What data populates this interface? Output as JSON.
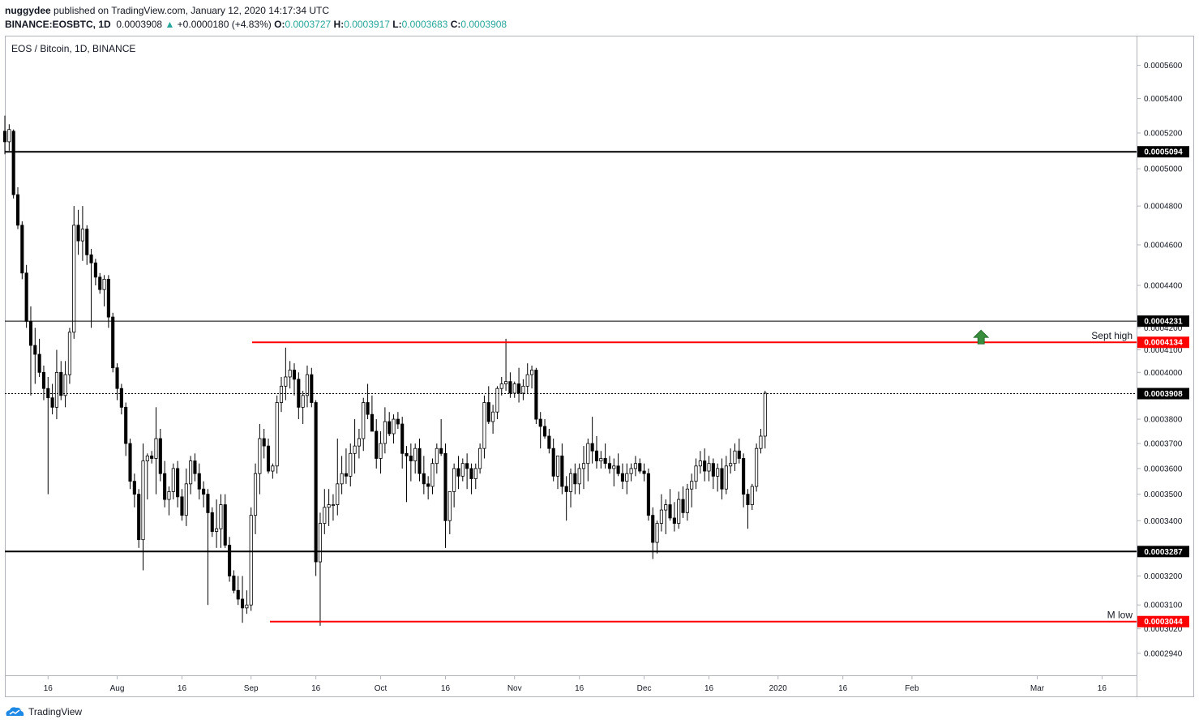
{
  "header": {
    "publisher": "nuggydee",
    "published_text": "published on TradingView.com, January 12, 2020 14:17:34 UTC",
    "symbol": "BINANCE:EOSBTC, 1D",
    "last": "0.0003908",
    "arrow": "▲",
    "change": "+0.0000180 (+4.83%)",
    "o_label": "O:",
    "o_value": "0.0003727",
    "h_label": "H:",
    "h_value": "0.0003917",
    "l_label": "L:",
    "l_value": "0.0003683",
    "c_label": "C:",
    "c_value": "0.0003908"
  },
  "footer": {
    "brand": "TradingView"
  },
  "chart_data": {
    "type": "candlestick",
    "title": "EOS / Bitcoin, 1D, BINANCE",
    "scale": "log",
    "ylim": [
      0.000287,
      0.000578
    ],
    "y_ticks": [
      "0.0005600",
      "0.0005400",
      "0.0005200",
      "0.0005000",
      "0.0004800",
      "0.0004600",
      "0.0004400",
      "0.0004200",
      "0.0004100",
      "0.0004000",
      "0.0003800",
      "0.0003700",
      "0.0003600",
      "0.0003500",
      "0.0003400",
      "0.0003200",
      "0.0003100",
      "0.0003020",
      "0.0002940"
    ],
    "x_ticks": [
      "16",
      "Aug",
      "16",
      "Sep",
      "16",
      "Oct",
      "16",
      "Nov",
      "16",
      "Dec",
      "16",
      "2020",
      "16",
      "Feb",
      "Mar",
      "16"
    ],
    "x_tick_dates": [
      "2019-07-16",
      "2019-08-01",
      "2019-08-16",
      "2019-09-01",
      "2019-09-16",
      "2019-10-01",
      "2019-10-16",
      "2019-11-01",
      "2019-11-16",
      "2019-12-01",
      "2019-12-16",
      "2020-01-01",
      "2020-01-16",
      "2020-02-01",
      "2020-03-01",
      "2020-03-16"
    ],
    "x_range": [
      "2019-07-06",
      "2020-03-24"
    ],
    "hlines": [
      {
        "value": 0.0005094,
        "label": "0.0005094",
        "color": "#000000",
        "note": ""
      },
      {
        "value": 0.0004231,
        "label": "0.0004231",
        "color": "#000000",
        "note": ""
      },
      {
        "value": 0.0004134,
        "label": "0.0004134",
        "color": "#ff0000",
        "note": "Sept high"
      },
      {
        "value": 0.0003908,
        "label": "0.0003908",
        "color": "#000000",
        "note": ""
      },
      {
        "value": 0.0003287,
        "label": "0.0003287",
        "color": "#000000",
        "note": ""
      },
      {
        "value": 0.0003044,
        "label": "0.0003044",
        "color": "#ff0000",
        "note": "M low"
      }
    ],
    "annotation": {
      "type": "arrow-up",
      "color": "#388e3c",
      "date": "2020-02-17",
      "value": 0.0004134
    },
    "candles_start": "2019-07-06",
    "candles": [
      [
        0.000521,
        0.00053,
        0.000508,
        0.000515
      ],
      [
        0.000515,
        0.000525,
        0.00051,
        0.000522
      ],
      [
        0.000521,
        0.000522,
        0.000484,
        0.000486
      ],
      [
        0.000486,
        0.00049,
        0.000468,
        0.00047
      ],
      [
        0.00047,
        0.000472,
        0.000443,
        0.000446
      ],
      [
        0.000446,
        0.00045,
        0.00042,
        0.000423
      ],
      [
        0.000423,
        0.00043,
        0.00039,
        0.000412
      ],
      [
        0.000412,
        0.00042,
        0.000395,
        0.000408
      ],
      [
        0.000408,
        0.000415,
        0.000398,
        0.0004
      ],
      [
        0.0004,
        0.000403,
        0.000388,
        0.000393
      ],
      [
        0.000393,
        0.000398,
        0.00035,
        0.000389
      ],
      [
        0.000389,
        0.000395,
        0.000382,
        0.000385
      ],
      [
        0.000385,
        0.00041,
        0.00038,
        0.0004
      ],
      [
        0.0004,
        0.000405,
        0.000388,
        0.00039
      ],
      [
        0.00039,
        0.000405,
        0.000385,
        0.000399
      ],
      [
        0.000399,
        0.00042,
        0.000395,
        0.000418
      ],
      [
        0.000418,
        0.00048,
        0.000415,
        0.00047
      ],
      [
        0.00047,
        0.000478,
        0.000455,
        0.000462
      ],
      [
        0.000462,
        0.00048,
        0.000452,
        0.000468
      ],
      [
        0.000468,
        0.00047,
        0.00045,
        0.000455
      ],
      [
        0.000455,
        0.000458,
        0.00042,
        0.000451
      ],
      [
        0.000451,
        0.000453,
        0.00044,
        0.000444
      ],
      [
        0.000444,
        0.000446,
        0.000436,
        0.000438
      ],
      [
        0.000438,
        0.000445,
        0.00043,
        0.000443
      ],
      [
        0.000443,
        0.000445,
        0.00042,
        0.000425
      ],
      [
        0.000425,
        0.000427,
        0.0004,
        0.000402
      ],
      [
        0.000402,
        0.000404,
        0.000388,
        0.000393
      ],
      [
        0.000393,
        0.000395,
        0.000382,
        0.000385
      ],
      [
        0.000385,
        0.000387,
        0.000365,
        0.00037
      ],
      [
        0.00037,
        0.000372,
        0.000352,
        0.000355
      ],
      [
        0.000355,
        0.000358,
        0.000345,
        0.00035
      ],
      [
        0.00035,
        0.000352,
        0.00033,
        0.000333
      ],
      [
        0.000333,
        0.00037,
        0.000322,
        0.000363
      ],
      [
        0.000363,
        0.000366,
        0.000348,
        0.000365
      ],
      [
        0.000365,
        0.000367,
        0.000362,
        0.000364
      ],
      [
        0.000364,
        0.000385,
        0.00035,
        0.000372
      ],
      [
        0.000372,
        0.000376,
        0.000355,
        0.000358
      ],
      [
        0.000358,
        0.000363,
        0.000345,
        0.000348
      ],
      [
        0.000348,
        0.000353,
        0.000342,
        0.000351
      ],
      [
        0.000351,
        0.000362,
        0.000348,
        0.00036
      ],
      [
        0.00036,
        0.000363,
        0.000345,
        0.000349
      ],
      [
        0.000349,
        0.000352,
        0.00034,
        0.000342
      ],
      [
        0.000342,
        0.00036,
        0.000338,
        0.000354
      ],
      [
        0.000354,
        0.000365,
        0.00035,
        0.000363
      ],
      [
        0.000363,
        0.000366,
        0.000355,
        0.000358
      ],
      [
        0.000358,
        0.000362,
        0.000348,
        0.000352
      ],
      [
        0.000352,
        0.000355,
        0.000345,
        0.00035
      ],
      [
        0.00035,
        0.000352,
        0.00031,
        0.000343
      ],
      [
        0.000343,
        0.000345,
        0.000334,
        0.000336
      ],
      [
        0.000336,
        0.000348,
        0.00033,
        0.000337
      ],
      [
        0.000337,
        0.00035,
        0.00033,
        0.000346
      ],
      [
        0.000346,
        0.00035,
        0.00033,
        0.000331
      ],
      [
        0.000331,
        0.000334,
        0.000318,
        0.00032
      ],
      [
        0.00032,
        0.000322,
        0.000314,
        0.000315
      ],
      [
        0.000315,
        0.00032,
        0.00031,
        0.000312
      ],
      [
        0.000312,
        0.00032,
        0.000304,
        0.000309
      ],
      [
        0.000309,
        0.000315,
        0.000307,
        0.00031
      ],
      [
        0.00031,
        0.000345,
        0.000308,
        0.000342
      ],
      [
        0.000342,
        0.000362,
        0.000335,
        0.000358
      ],
      [
        0.000358,
        0.000378,
        0.00035,
        0.000372
      ],
      [
        0.000372,
        0.000376,
        0.000364,
        0.000369
      ],
      [
        0.000369,
        0.000372,
        0.000358,
        0.000359
      ],
      [
        0.000359,
        0.000362,
        0.000356,
        0.000361
      ],
      [
        0.000361,
        0.00039,
        0.000358,
        0.000387
      ],
      [
        0.000387,
        0.000398,
        0.000383,
        0.000394
      ],
      [
        0.000394,
        0.000411,
        0.000388,
        0.000398
      ],
      [
        0.000398,
        0.000405,
        0.000393,
        0.000401
      ],
      [
        0.000401,
        0.000404,
        0.00039,
        0.000397
      ],
      [
        0.000397,
        0.0004,
        0.00038,
        0.000385
      ],
      [
        0.000385,
        0.000392,
        0.000378,
        0.00039
      ],
      [
        0.00039,
        0.000403,
        0.000385,
        0.000399
      ],
      [
        0.000399,
        0.000402,
        0.000385,
        0.000387
      ],
      [
        0.000387,
        0.000388,
        0.00032,
        0.000325
      ],
      [
        0.000325,
        0.000343,
        0.000303,
        0.000339
      ],
      [
        0.000339,
        0.000352,
        0.000335,
        0.000345
      ],
      [
        0.000345,
        0.000352,
        0.000338,
        0.000346
      ],
      [
        0.000346,
        0.00035,
        0.00034,
        0.000346
      ],
      [
        0.000346,
        0.000372,
        0.000342,
        0.000354
      ],
      [
        0.000354,
        0.000365,
        0.00035,
        0.000358
      ],
      [
        0.000358,
        0.000368,
        0.000354,
        0.000357
      ],
      [
        0.000357,
        0.00037,
        0.000353,
        0.000366
      ],
      [
        0.000366,
        0.00038,
        0.000358,
        0.000369
      ],
      [
        0.000369,
        0.000376,
        0.000364,
        0.000372
      ],
      [
        0.000372,
        0.000389,
        0.000367,
        0.000387
      ],
      [
        0.000387,
        0.000395,
        0.00038,
        0.000382
      ],
      [
        0.000382,
        0.00039,
        0.000375,
        0.000375
      ],
      [
        0.000375,
        0.00038,
        0.00036,
        0.000364
      ],
      [
        0.000364,
        0.000375,
        0.000358,
        0.00037
      ],
      [
        0.00037,
        0.000385,
        0.000366,
        0.000379
      ],
      [
        0.000379,
        0.000383,
        0.000373,
        0.000374
      ],
      [
        0.000374,
        0.000382,
        0.00037,
        0.00038
      ],
      [
        0.00038,
        0.000383,
        0.000376,
        0.000378
      ],
      [
        0.000378,
        0.000381,
        0.00036,
        0.000366
      ],
      [
        0.000366,
        0.000369,
        0.000347,
        0.000365
      ],
      [
        0.000365,
        0.00037,
        0.000355,
        0.000363
      ],
      [
        0.000363,
        0.00037,
        0.000358,
        0.000368
      ],
      [
        0.000368,
        0.000372,
        0.000355,
        0.000358
      ],
      [
        0.000358,
        0.000365,
        0.00035,
        0.000354
      ],
      [
        0.000354,
        0.000357,
        0.000348,
        0.000353
      ],
      [
        0.000353,
        0.000364,
        0.00035,
        0.000362
      ],
      [
        0.000362,
        0.00037,
        0.000358,
        0.000368
      ],
      [
        0.000368,
        0.00038,
        0.000365,
        0.000366
      ],
      [
        0.000366,
        0.00037,
        0.00033,
        0.00034
      ],
      [
        0.00034,
        0.00035,
        0.000335,
        0.000351
      ],
      [
        0.000351,
        0.000362,
        0.000345,
        0.00036
      ],
      [
        0.00036,
        0.000365,
        0.000352,
        0.000357
      ],
      [
        0.000357,
        0.000364,
        0.000355,
        0.000362
      ],
      [
        0.000362,
        0.000366,
        0.000352,
        0.00036
      ],
      [
        0.00036,
        0.000362,
        0.00035,
        0.000356
      ],
      [
        0.000356,
        0.000362,
        0.000352,
        0.00036
      ],
      [
        0.00036,
        0.00037,
        0.000358,
        0.000368
      ],
      [
        0.000368,
        0.00039,
        0.000364,
        0.000387
      ],
      [
        0.000387,
        0.000394,
        0.000378,
        0.000379
      ],
      [
        0.000379,
        0.000386,
        0.000374,
        0.000383
      ],
      [
        0.000383,
        0.000394,
        0.00038,
        0.000393
      ],
      [
        0.000393,
        0.000398,
        0.00039,
        0.000395
      ],
      [
        0.000395,
        0.000415,
        0.000392,
        0.000396
      ],
      [
        0.000396,
        0.0004,
        0.000389,
        0.000391
      ],
      [
        0.000391,
        0.000396,
        0.000389,
        0.000395
      ],
      [
        0.000395,
        0.000402,
        0.000387,
        0.000391
      ],
      [
        0.000391,
        0.000397,
        0.000388,
        0.000394
      ],
      [
        0.000394,
        0.000404,
        0.000391,
        0.000399
      ],
      [
        0.000399,
        0.000403,
        0.000393,
        0.000401
      ],
      [
        0.000401,
        0.000402,
        0.000378,
        0.00038
      ],
      [
        0.00038,
        0.000383,
        0.000368,
        0.000377
      ],
      [
        0.000377,
        0.00038,
        0.000372,
        0.000373
      ],
      [
        0.000373,
        0.000376,
        0.000366,
        0.000368
      ],
      [
        0.000368,
        0.000372,
        0.000355,
        0.000357
      ],
      [
        0.000357,
        0.000365,
        0.000352,
        0.000365
      ],
      [
        0.000365,
        0.00037,
        0.00035,
        0.000353
      ],
      [
        0.000353,
        0.000357,
        0.00034,
        0.000351
      ],
      [
        0.000351,
        0.00036,
        0.000345,
        0.000358
      ],
      [
        0.000358,
        0.000362,
        0.00035,
        0.000354
      ],
      [
        0.000354,
        0.000362,
        0.00035,
        0.00036
      ],
      [
        0.00036,
        0.000369,
        0.000352,
        0.000362
      ],
      [
        0.000362,
        0.000372,
        0.000355,
        0.00037
      ],
      [
        0.00037,
        0.000381,
        0.000362,
        0.000367
      ],
      [
        0.000367,
        0.000373,
        0.00036,
        0.000363
      ],
      [
        0.000363,
        0.000367,
        0.00036,
        0.000364
      ],
      [
        0.000364,
        0.00037,
        0.00036,
        0.000362
      ],
      [
        0.000362,
        0.000365,
        0.000358,
        0.00036
      ],
      [
        0.00036,
        0.000364,
        0.000353,
        0.000361
      ],
      [
        0.000361,
        0.000366,
        0.000357,
        0.000358
      ],
      [
        0.000358,
        0.000362,
        0.000352,
        0.000355
      ],
      [
        0.000355,
        0.000362,
        0.00035,
        0.000358
      ],
      [
        0.000358,
        0.000362,
        0.000355,
        0.00036
      ],
      [
        0.00036,
        0.000365,
        0.000357,
        0.000362
      ],
      [
        0.000362,
        0.000364,
        0.000358,
        0.000359
      ],
      [
        0.000359,
        0.000362,
        0.000355,
        0.000358
      ],
      [
        0.000358,
        0.00036,
        0.00034,
        0.000342
      ],
      [
        0.000342,
        0.000345,
        0.000326,
        0.000332
      ],
      [
        0.000332,
        0.00034,
        0.000328,
        0.000339
      ],
      [
        0.000339,
        0.00035,
        0.000336,
        0.000344
      ],
      [
        0.000344,
        0.000348,
        0.000335,
        0.000346
      ],
      [
        0.000346,
        0.000352,
        0.00034,
        0.000341
      ],
      [
        0.000341,
        0.000347,
        0.000336,
        0.000339
      ],
      [
        0.000339,
        0.000351,
        0.000337,
        0.000348
      ],
      [
        0.000348,
        0.000353,
        0.000341,
        0.000343
      ],
      [
        0.000343,
        0.000354,
        0.00034,
        0.000352
      ],
      [
        0.000352,
        0.000358,
        0.000345,
        0.000355
      ],
      [
        0.000355,
        0.000364,
        0.000352,
        0.000361
      ],
      [
        0.000361,
        0.000367,
        0.000358,
        0.000363
      ],
      [
        0.000363,
        0.000368,
        0.000355,
        0.000359
      ],
      [
        0.000359,
        0.000365,
        0.000355,
        0.000362
      ],
      [
        0.000362,
        0.000364,
        0.000352,
        0.000357
      ],
      [
        0.000357,
        0.000362,
        0.000351,
        0.00036
      ],
      [
        0.00036,
        0.000364,
        0.000348,
        0.000352
      ],
      [
        0.000352,
        0.000365,
        0.00035,
        0.000361
      ],
      [
        0.000361,
        0.000368,
        0.000358,
        0.000362
      ],
      [
        0.000362,
        0.00037,
        0.000359,
        0.000367
      ],
      [
        0.000367,
        0.000372,
        0.000362,
        0.000364
      ],
      [
        0.000364,
        0.000366,
        0.000345,
        0.00035
      ],
      [
        0.00035,
        0.000352,
        0.000337,
        0.000346
      ],
      [
        0.000346,
        0.000354,
        0.000344,
        0.000353
      ],
      [
        0.000353,
        0.00037,
        0.000351,
        0.000368
      ],
      [
        0.000368,
        0.000376,
        0.000366,
        0.000373
      ],
      [
        0.000373,
        0.000392,
        0.000368,
        0.000391
      ]
    ]
  }
}
